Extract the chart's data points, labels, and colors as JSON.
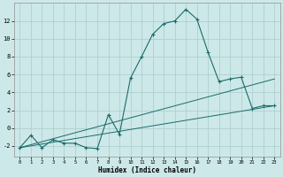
{
  "xlabel": "Humidex (Indice chaleur)",
  "bg_color": "#cde8e8",
  "grid_color": "#b0d0d0",
  "line_color": "#1a6b6b",
  "xlim": [
    -0.5,
    23.5
  ],
  "ylim": [
    -3.2,
    14.0
  ],
  "xticks": [
    0,
    1,
    2,
    3,
    4,
    5,
    6,
    7,
    8,
    9,
    10,
    11,
    12,
    13,
    14,
    15,
    16,
    17,
    18,
    19,
    20,
    21,
    22,
    23
  ],
  "yticks": [
    -2,
    0,
    2,
    4,
    6,
    8,
    10,
    12
  ],
  "curve1_x": [
    0,
    1,
    2,
    3,
    4,
    5,
    6,
    7,
    8,
    9,
    10,
    11,
    12,
    13,
    14,
    15,
    16,
    17,
    18,
    19,
    20,
    21,
    22,
    23
  ],
  "curve1_y": [
    -2.2,
    -0.8,
    -2.2,
    -1.3,
    -1.7,
    -1.7,
    -2.2,
    -2.3,
    1.5,
    -0.7,
    5.6,
    8.0,
    10.5,
    11.7,
    12.0,
    13.3,
    12.2,
    8.5,
    5.2,
    5.5,
    5.7,
    2.2,
    2.5,
    2.5
  ],
  "line2_x": [
    0,
    23
  ],
  "line2_y": [
    -2.2,
    2.5
  ],
  "line3_x": [
    0,
    23
  ],
  "line3_y": [
    -2.2,
    5.5
  ]
}
